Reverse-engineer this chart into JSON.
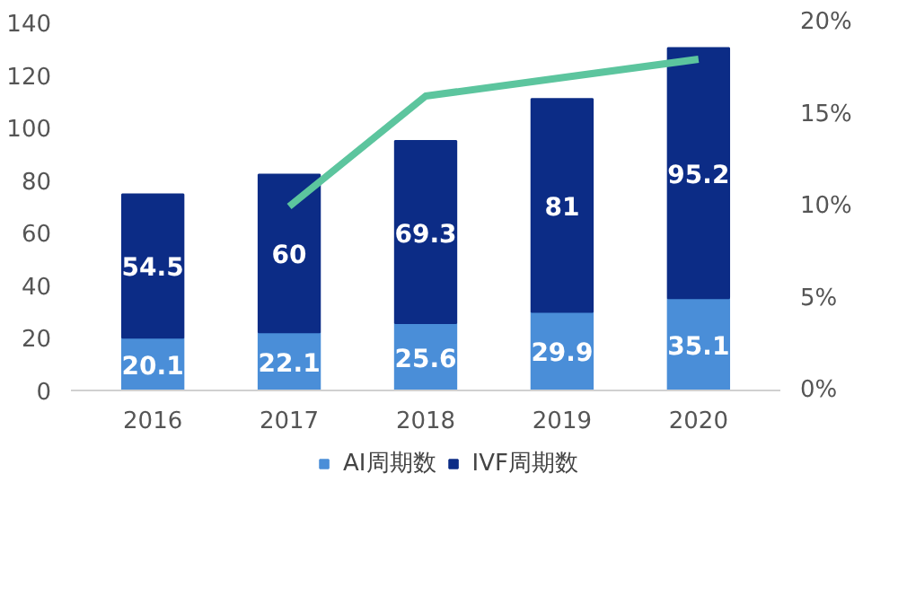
{
  "chart_data": {
    "type": "bar",
    "categories": [
      "2016",
      "2017",
      "2018",
      "2019",
      "2020"
    ],
    "stacked": true,
    "legend": "bottom",
    "series": [
      {
        "name": "AI周期数",
        "color": "#4a8ed8",
        "values": [
          20.1,
          22.1,
          25.6,
          29.9,
          35.1
        ],
        "value_labels": [
          "20.1",
          "22.1",
          "25.6",
          "29.9",
          "35.1"
        ]
      },
      {
        "name": "IVF周期数",
        "color": "#0c2c86",
        "values": [
          54.5,
          60,
          69.3,
          81,
          95.2
        ],
        "value_labels": [
          "54.5",
          "60",
          "69.3",
          "81",
          "95.2"
        ]
      },
      {
        "type": "line",
        "axis": "y2",
        "color": "#5cc59e",
        "values": [
          null,
          10,
          16,
          17,
          18
        ]
      }
    ],
    "ylim": [
      0,
      140
    ],
    "yticks": [
      0,
      20,
      40,
      60,
      80,
      100,
      120,
      140
    ],
    "y2lim": [
      0,
      20
    ],
    "y2ticks": [
      {
        "value": 0,
        "label": "0%"
      },
      {
        "value": 5,
        "label": "5%"
      },
      {
        "value": 10,
        "label": "10%"
      },
      {
        "value": 15,
        "label": "15%"
      },
      {
        "value": 20,
        "label": "20%"
      }
    ]
  }
}
